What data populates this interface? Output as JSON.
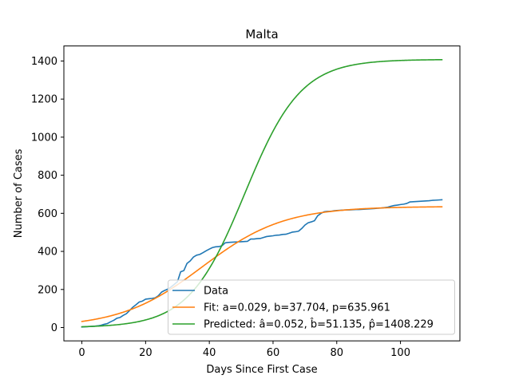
{
  "chart_data": {
    "type": "line",
    "title": "Malta",
    "xlabel": "Days Since First Case",
    "ylabel": "Number of Cases",
    "xlim": [
      -5.65,
      118.65
    ],
    "ylim": [
      -70,
      1479
    ],
    "xticks": [
      0,
      20,
      40,
      60,
      80,
      100
    ],
    "yticks": [
      0,
      200,
      400,
      600,
      800,
      1000,
      1200,
      1400
    ],
    "grid": false,
    "legend_position": "lower right",
    "series": [
      {
        "name": "Data",
        "color": "#1f77b4",
        "kind": "points",
        "x": [
          0,
          1,
          2,
          3,
          4,
          5,
          6,
          7,
          8,
          9,
          10,
          11,
          12,
          13,
          14,
          15,
          16,
          17,
          18,
          19,
          20,
          21,
          22,
          23,
          24,
          25,
          26,
          27,
          28,
          29,
          30,
          31,
          32,
          33,
          34,
          35,
          36,
          37,
          38,
          39,
          40,
          41,
          42,
          43,
          44,
          45,
          46,
          47,
          48,
          49,
          50,
          51,
          52,
          53,
          54,
          55,
          56,
          57,
          58,
          59,
          60,
          61,
          62,
          63,
          64,
          65,
          66,
          67,
          68,
          69,
          70,
          71,
          72,
          73,
          74,
          75,
          76,
          77,
          78,
          79,
          80,
          81,
          82,
          83,
          84,
          85,
          86,
          87,
          88,
          89,
          90,
          91,
          92,
          93,
          94,
          95,
          96,
          97,
          98,
          99,
          100,
          101,
          102,
          103,
          104,
          105,
          106,
          107,
          108,
          109,
          110,
          111,
          112,
          113
        ],
        "y": [
          3,
          4,
          5,
          6,
          7,
          9,
          12,
          17,
          21,
          30,
          38,
          49,
          53,
          64,
          73,
          90,
          107,
          120,
          134,
          139,
          149,
          151,
          153,
          156,
          167,
          186,
          195,
          202,
          213,
          227,
          241,
          293,
          299,
          337,
          350,
          370,
          380,
          384,
          393,
          403,
          412,
          420,
          424,
          425,
          430,
          445,
          447,
          448,
          449,
          450,
          451,
          452,
          453,
          465,
          465,
          467,
          468,
          473,
          478,
          480,
          482,
          485,
          486,
          489,
          490,
          495,
          501,
          503,
          506,
          520,
          538,
          550,
          555,
          561,
          587,
          599,
          608,
          610,
          610,
          613,
          615,
          616,
          617,
          618,
          618,
          619,
          620,
          620,
          621,
          622,
          623,
          624,
          625,
          627,
          628,
          630,
          632,
          637,
          641,
          643,
          646,
          648,
          652,
          660,
          661,
          662,
          663,
          664,
          665,
          666,
          668,
          669,
          670,
          671
        ]
      },
      {
        "name": "Fit: a=0.029, b=37.704, p=635.961",
        "color": "#ff7f0e",
        "kind": "logistic",
        "a": 0.029,
        "b": 37.704,
        "p": 635.961
      },
      {
        "name": "Predicted: â=0.052, b̂=51.135, p̂=1408.229",
        "color": "#2ca02c",
        "kind": "logistic",
        "a": 0.052,
        "b": 51.135,
        "p": 1408.229
      }
    ],
    "x_range": [
      0,
      113
    ]
  }
}
